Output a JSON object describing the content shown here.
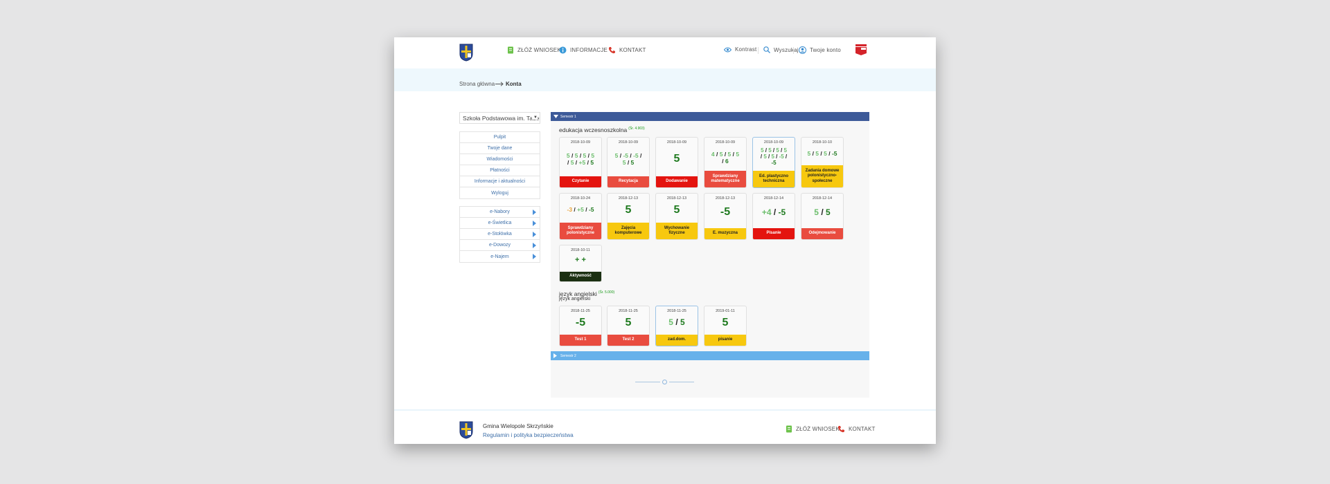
{
  "header": {
    "nav": [
      {
        "label": "ZŁÓŻ WNIOSEK",
        "icon": "document-icon"
      },
      {
        "label": "INFORMACJE",
        "icon": "info-icon"
      },
      {
        "label": "KONTAKT",
        "icon": "phone-icon"
      }
    ],
    "tools": [
      {
        "label": "Kontrast",
        "icon": "eye-icon"
      },
      {
        "label": "Wyszukaj",
        "icon": "search-icon"
      },
      {
        "label": "Twoje konto",
        "icon": "user-icon"
      }
    ]
  },
  "breadcrumb": {
    "home": "Strona główna",
    "current": "Konta"
  },
  "sidebar": {
    "school": "Szkoła Podstawowa im. Tadeusza Kościuszki",
    "menu": [
      "Pulpit",
      "Twoje dane",
      "Wiadomości",
      "Płatności",
      "Informacje i aktualności",
      "Wyloguj"
    ],
    "services": [
      "e-Nabory",
      "e-Świetlica",
      "e-Stołówka",
      "e-Dowozy",
      "e-Najem"
    ]
  },
  "semesters": {
    "first": "Semestr 1",
    "second": "Semestr 2"
  },
  "subjects": [
    {
      "name": "edukacja wczesnoszkolna",
      "average": "(Śr. 4.903)",
      "cards": [
        {
          "date": "2018-10-09",
          "label": "Czytanie",
          "color": "red"
        },
        {
          "date": "2018-10-09",
          "label": "Recytacja",
          "color": "salmon"
        },
        {
          "date": "2018-10-09",
          "label": "Dodawanie",
          "color": "red"
        },
        {
          "date": "2018-10-09",
          "label": "Sprawdziany matematyczne",
          "color": "salmon"
        },
        {
          "date": "2018-10-09",
          "label": "Ed. plastyczno techniczna",
          "color": "yellow"
        },
        {
          "date": "2018-10-10",
          "label": "Zadania domowe polonistyczno-społeczne",
          "color": "yellow"
        },
        {
          "date": "2018-10-24",
          "label": "Sprawdziany polonistyczne",
          "color": "salmon"
        },
        {
          "date": "2018-12-13",
          "label": "Zajęcia komputerowe",
          "color": "yellow"
        },
        {
          "date": "2018-12-13",
          "label": "Wychowanie fizyczne",
          "color": "yellow"
        },
        {
          "date": "2018-12-13",
          "label": "E. muzyczna",
          "color": "yellow"
        },
        {
          "date": "2018-12-14",
          "label": "Pisanie",
          "color": "red"
        },
        {
          "date": "2018-12-14",
          "label": "Odejmowanie",
          "color": "salmon"
        },
        {
          "date": "2018-10-11",
          "label": "Aktywność",
          "color": "dark"
        }
      ]
    },
    {
      "name": "język angielski",
      "name_repeat": "język angielski",
      "average": "(Śr. 5.000)",
      "cards": [
        {
          "date": "2018-11-25",
          "label": "Test 1",
          "color": "salmon"
        },
        {
          "date": "2018-11-25",
          "label": "Test 2",
          "color": "salmon"
        },
        {
          "date": "2018-11-25",
          "label": "zad.dom.",
          "color": "yellow"
        },
        {
          "date": "2019-01-11",
          "label": "pisanie",
          "color": "yellow"
        }
      ]
    }
  ],
  "grades": {
    "g1": [
      {
        "t": "5",
        "c": "gl"
      },
      {
        "t": " / ",
        "c": "gb"
      },
      {
        "t": "5",
        "c": "gl"
      },
      {
        "t": " / ",
        "c": "gb"
      },
      {
        "t": "5",
        "c": "gl"
      },
      {
        "t": " / ",
        "c": "gb"
      },
      {
        "t": "5",
        "c": "gl"
      },
      {
        "t": "\n",
        "c": ""
      },
      {
        "t": "/ ",
        "c": "gb"
      },
      {
        "t": "5",
        "c": "gl"
      },
      {
        "t": " / ",
        "c": "gb"
      },
      {
        "t": "+5",
        "c": "gl"
      },
      {
        "t": " / ",
        "c": "gb"
      },
      {
        "t": "5",
        "c": "gd"
      }
    ],
    "g2": [
      {
        "t": "5",
        "c": "gl"
      },
      {
        "t": " / ",
        "c": "gb"
      },
      {
        "t": "-5",
        "c": "gl"
      },
      {
        "t": " / ",
        "c": "gb"
      },
      {
        "t": "-5",
        "c": "gl"
      },
      {
        "t": " /",
        "c": "gb"
      },
      {
        "t": "\n",
        "c": ""
      },
      {
        "t": "5",
        "c": "gl"
      },
      {
        "t": " / ",
        "c": "gb"
      },
      {
        "t": "5",
        "c": "gd"
      }
    ],
    "g3": [
      {
        "t": "5",
        "c": "gd"
      }
    ],
    "g4": [
      {
        "t": "4",
        "c": "gl"
      },
      {
        "t": " / ",
        "c": "gb"
      },
      {
        "t": "5",
        "c": "gl"
      },
      {
        "t": " / ",
        "c": "gb"
      },
      {
        "t": "5",
        "c": "gl"
      },
      {
        "t": " / ",
        "c": "gb"
      },
      {
        "t": "5",
        "c": "gl"
      },
      {
        "t": "\n",
        "c": ""
      },
      {
        "t": "/ ",
        "c": "gb"
      },
      {
        "t": "6",
        "c": "gd"
      }
    ],
    "g5": [
      {
        "t": "5",
        "c": "gl"
      },
      {
        "t": " / ",
        "c": "gb"
      },
      {
        "t": "5",
        "c": "gl"
      },
      {
        "t": " / ",
        "c": "gb"
      },
      {
        "t": "5",
        "c": "gl"
      },
      {
        "t": " / ",
        "c": "gb"
      },
      {
        "t": "5",
        "c": "gl"
      },
      {
        "t": "\n",
        "c": ""
      },
      {
        "t": "/ ",
        "c": "gb"
      },
      {
        "t": "5",
        "c": "gl"
      },
      {
        "t": " / ",
        "c": "gb"
      },
      {
        "t": "5",
        "c": "gl"
      },
      {
        "t": " / ",
        "c": "gb"
      },
      {
        "t": "-5",
        "c": "gl"
      },
      {
        "t": " /",
        "c": "gb"
      },
      {
        "t": "\n",
        "c": ""
      },
      {
        "t": "-5",
        "c": "gd"
      }
    ],
    "g6": [
      {
        "t": "5",
        "c": "gl"
      },
      {
        "t": " / ",
        "c": "gb"
      },
      {
        "t": "5",
        "c": "gl"
      },
      {
        "t": " / ",
        "c": "gb"
      },
      {
        "t": "5",
        "c": "gl"
      },
      {
        "t": " / ",
        "c": "gb"
      },
      {
        "t": "-5",
        "c": "gd"
      }
    ],
    "g7": [
      {
        "t": "-3",
        "c": "go"
      },
      {
        "t": " / ",
        "c": "gb"
      },
      {
        "t": "+5",
        "c": "gl"
      },
      {
        "t": " / ",
        "c": "gb"
      },
      {
        "t": "-5",
        "c": "gd"
      }
    ],
    "g8": [
      {
        "t": "5",
        "c": "gd"
      }
    ],
    "g9": [
      {
        "t": "5",
        "c": "gd"
      }
    ],
    "g10": [
      {
        "t": "-5",
        "c": "gd"
      }
    ],
    "g11": [
      {
        "t": "+4",
        "c": "gl"
      },
      {
        "t": " / ",
        "c": "gb"
      },
      {
        "t": "-5",
        "c": "gd"
      }
    ],
    "g12": [
      {
        "t": "5",
        "c": "gl"
      },
      {
        "t": " / ",
        "c": "gb"
      },
      {
        "t": "5",
        "c": "gd"
      }
    ],
    "g13": [
      {
        "t": "+ +",
        "c": "gd"
      }
    ],
    "e1": [
      {
        "t": "-5",
        "c": "gd"
      }
    ],
    "e2": [
      {
        "t": "5",
        "c": "gd"
      }
    ],
    "e3": [
      {
        "t": "5",
        "c": "gl"
      },
      {
        "t": " / ",
        "c": "gb"
      },
      {
        "t": "5",
        "c": "gd"
      }
    ],
    "e4": [
      {
        "t": "5",
        "c": "gd"
      }
    ]
  },
  "footer": {
    "org": "Gmina Wielopole Skrzyńskie",
    "policy": "Regulamin i polityka bezpieczeństwa",
    "links": [
      "ZŁÓŻ WNIOSEK",
      "KONTAKT"
    ]
  }
}
